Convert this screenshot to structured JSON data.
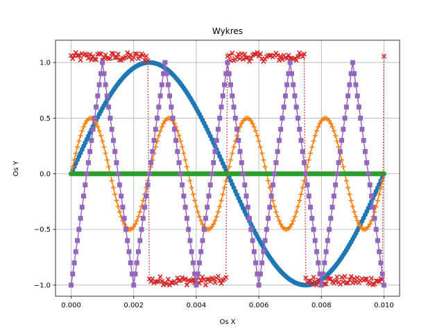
{
  "chart_data": {
    "type": "line",
    "title": "Wykres",
    "xlabel": "Os X",
    "ylabel": "Os Y",
    "xlim": [
      -0.0005,
      0.0105
    ],
    "ylim": [
      -1.1,
      1.2
    ],
    "grid": true,
    "x_ticks": [
      0.0,
      0.002,
      0.004,
      0.006,
      0.008,
      0.01
    ],
    "x_tick_labels": [
      "0.000",
      "0.002",
      "0.004",
      "0.006",
      "0.008",
      "0.010"
    ],
    "y_ticks": [
      -1.0,
      -0.5,
      0.0,
      0.5,
      1.0
    ],
    "y_tick_labels": [
      "−1.0",
      "−0.5",
      "0.0",
      "0.5",
      "1.0"
    ],
    "series": [
      {
        "key": "sine100",
        "kind": "sine",
        "frequency_hz": 100,
        "amplitude": 1.0,
        "x_start": 0.0,
        "x_end": 0.01,
        "marker": "circle",
        "color": "#1f77b4"
      },
      {
        "key": "sine400",
        "kind": "sine",
        "frequency_hz": 400,
        "amplitude": 0.5,
        "x_start": 0.0,
        "x_end": 0.01,
        "marker": "plus",
        "color": "#ff7f0e"
      },
      {
        "key": "zero",
        "kind": "constant",
        "value": 0.0,
        "x_start": 0.0,
        "x_end": 0.01,
        "marker": "circle",
        "color": "#2ca02c"
      },
      {
        "key": "square200",
        "kind": "square",
        "frequency_hz": 200,
        "high": 1.05,
        "low": -0.96,
        "noise": 0.04,
        "x_start": 0.0,
        "x_end": 0.01,
        "marker": "x",
        "linestyle": "dotted",
        "color": "#d62728"
      },
      {
        "key": "triangle500",
        "kind": "triangle",
        "frequency_hz": 500,
        "amplitude": 1.0,
        "x_start": 0.0,
        "x_end": 0.01,
        "marker": "square",
        "color": "#9467bd"
      }
    ]
  }
}
